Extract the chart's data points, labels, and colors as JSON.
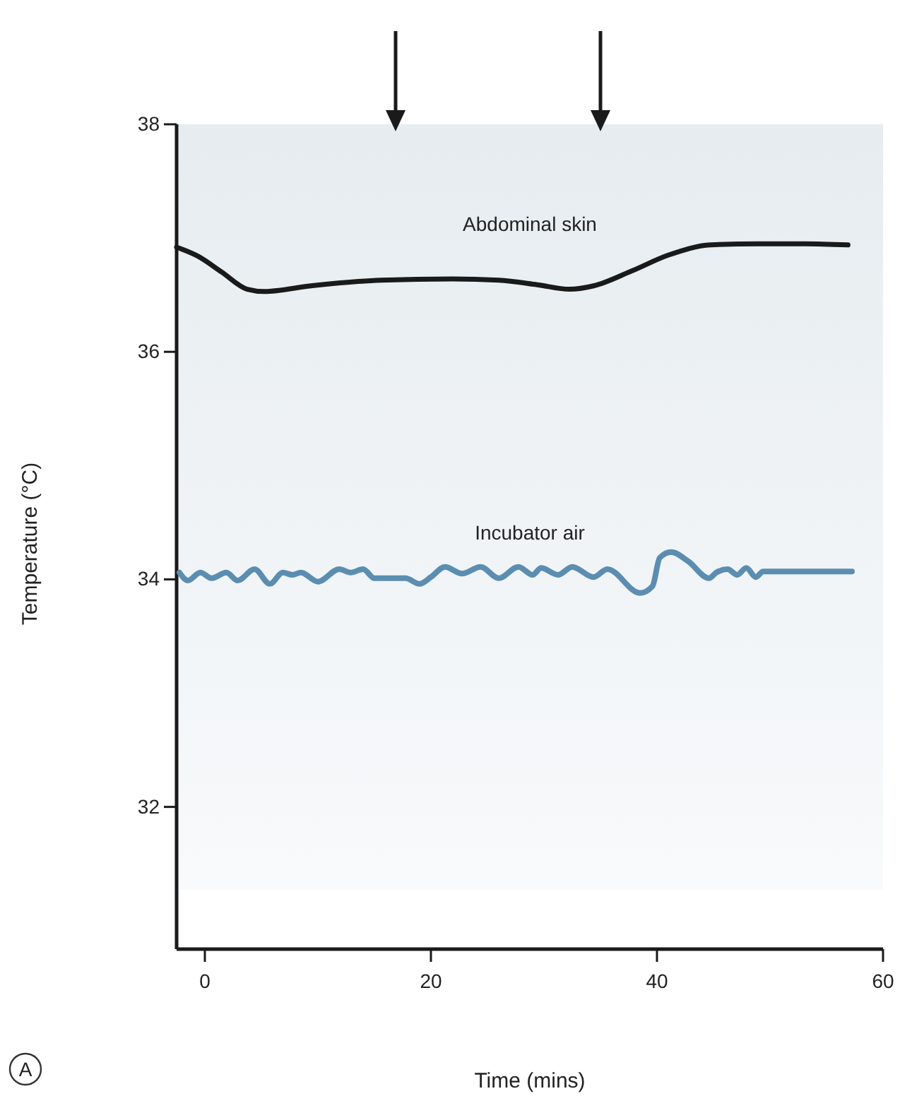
{
  "chart_data": {
    "type": "line",
    "xlabel": "Time (mins)",
    "ylabel": "Temperature (°C)",
    "annotations": [
      "A"
    ],
    "xlim": [
      -2.5,
      60
    ],
    "ylim": [
      30.75,
      38
    ],
    "xticks": [
      0,
      20,
      40,
      60
    ],
    "yticks": [
      32,
      34,
      36,
      38
    ],
    "grid": false,
    "marker": "none",
    "line_style": "solid",
    "series": [
      {
        "name": "Abdominal skin",
        "color": "#1a1a1a",
        "x": [
          -2.5,
          -0.6,
          1.5,
          3.75,
          5.25,
          9.4,
          15.6,
          21.9,
          26,
          29.4,
          32.25,
          34.4,
          37.75,
          41,
          44.75,
          49,
          53.1,
          56.9
        ],
        "values": [
          36.92,
          36.84,
          36.7,
          36.55,
          36.53,
          36.58,
          36.63,
          36.64,
          36.63,
          36.59,
          36.55,
          36.58,
          36.71,
          36.85,
          36.94,
          36.95,
          36.95,
          36.94
        ]
      },
      {
        "name": "Incubator air",
        "color": "#5b8db0",
        "x": [
          -2.25,
          -1.5,
          -0.4,
          0.6,
          1.9,
          2.9,
          4.4,
          5.75,
          6.9,
          7.75,
          8.5,
          10,
          11.9,
          12.9,
          14,
          15,
          17.75,
          19,
          20,
          21.25,
          22.75,
          24.4,
          26,
          27.75,
          29,
          29.75,
          31.25,
          32.5,
          34.4,
          35.6,
          38.5,
          39.6,
          40.25,
          41.25,
          42.75,
          44.6,
          45.25,
          46.25,
          47.1,
          47.9,
          48.75,
          49.4,
          57.25
        ],
        "values": [
          34.06,
          33.99,
          34.06,
          34.01,
          34.06,
          33.99,
          34.09,
          33.96,
          34.06,
          34.04,
          34.06,
          33.98,
          34.09,
          34.06,
          34.09,
          34.01,
          34.01,
          33.96,
          34.02,
          34.11,
          34.05,
          34.11,
          34.01,
          34.11,
          34.04,
          34.1,
          34.04,
          34.11,
          34.02,
          34.09,
          33.88,
          33.94,
          34.19,
          34.24,
          34.16,
          34.01,
          34.06,
          34.09,
          34.04,
          34.1,
          34.02,
          34.07,
          34.07
        ]
      }
    ]
  }
}
